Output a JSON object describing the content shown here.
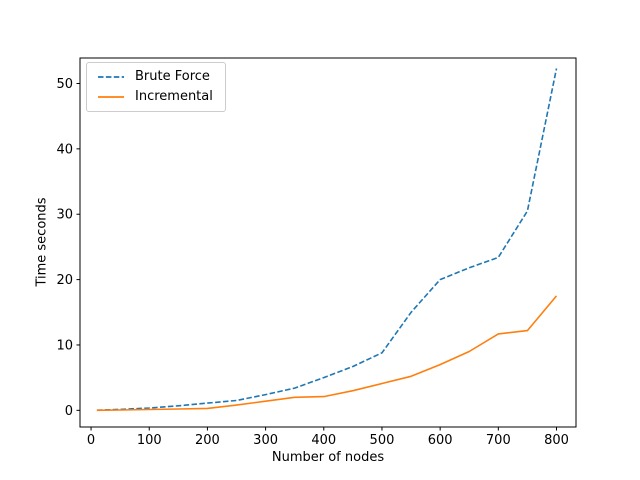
{
  "chart_data": {
    "type": "line",
    "title": "",
    "xlabel": "Number of nodes",
    "ylabel": "Time seconds",
    "x": [
      10,
      50,
      100,
      150,
      200,
      250,
      300,
      350,
      400,
      450,
      500,
      550,
      600,
      650,
      700,
      750,
      800
    ],
    "series": [
      {
        "name": "Brute Force",
        "color": "#1f77b4",
        "style": "dashed",
        "values": [
          0.02,
          0.15,
          0.35,
          0.7,
          1.1,
          1.5,
          2.4,
          3.4,
          5.0,
          6.7,
          8.8,
          15.0,
          20.0,
          21.8,
          23.4,
          30.5,
          52.3
        ]
      },
      {
        "name": "Incremental",
        "color": "#ff7f0e",
        "style": "solid",
        "values": [
          0.01,
          0.05,
          0.12,
          0.2,
          0.3,
          0.8,
          1.4,
          2.0,
          2.1,
          3.0,
          4.1,
          5.2,
          7.0,
          9.0,
          11.7,
          12.2,
          17.5
        ]
      }
    ],
    "xticks": [
      0,
      100,
      200,
      300,
      400,
      500,
      600,
      700,
      800
    ],
    "yticks": [
      0,
      10,
      20,
      30,
      40,
      50
    ],
    "xlim": [
      -19,
      833.5
    ],
    "ylim": [
      -2.55,
      53.9
    ],
    "grid": false,
    "legend": {
      "position": "upper-left",
      "entries": [
        "Brute Force",
        "Incremental"
      ]
    }
  }
}
